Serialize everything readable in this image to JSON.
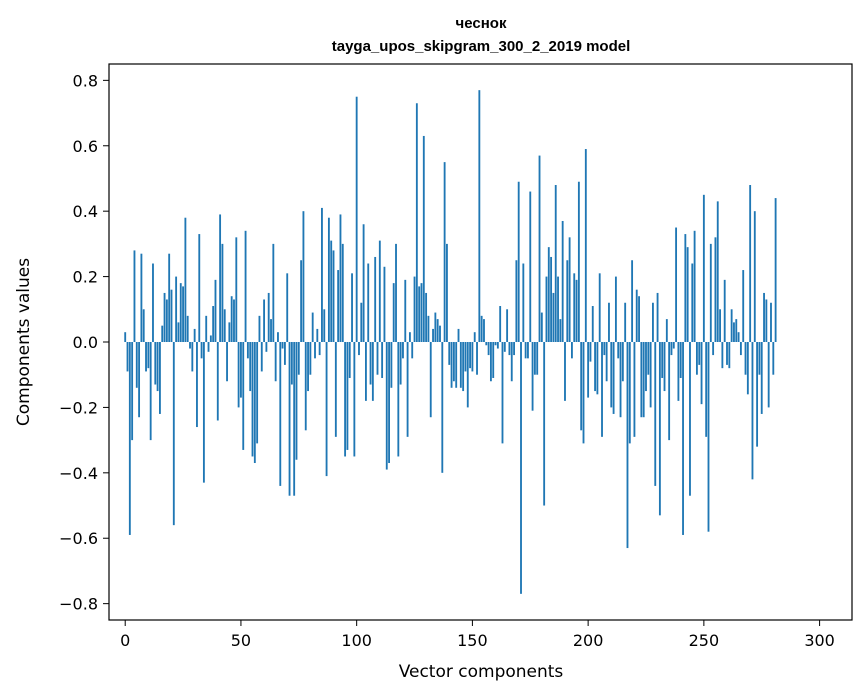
{
  "chart_data": {
    "type": "bar",
    "title": "чеснок",
    "subtitle": "tayga_upos_skipgram_300_2_2019 model",
    "xlabel": "Vector components",
    "ylabel": "Components values",
    "xlim": [
      -7,
      314
    ],
    "ylim": [
      -0.85,
      0.85
    ],
    "xticks": [
      0,
      50,
      100,
      150,
      200,
      250,
      300
    ],
    "xtick_labels": [
      "0",
      "50",
      "100",
      "150",
      "200",
      "250",
      "300"
    ],
    "yticks": [
      0.8,
      0.6,
      0.4,
      0.2,
      0.0,
      -0.2,
      -0.4,
      -0.6,
      -0.8
    ],
    "ytick_labels": [
      "0.8",
      "0.6",
      "0.4",
      "0.2",
      "0.0",
      "−0.2",
      "−0.4",
      "−0.6",
      "−0.8"
    ],
    "grid": false,
    "bar_color": "#1f77b4",
    "values": [
      0.03,
      -0.09,
      -0.59,
      -0.3,
      0.28,
      -0.14,
      -0.23,
      0.27,
      0.1,
      -0.09,
      -0.08,
      -0.3,
      0.24,
      -0.13,
      -0.15,
      -0.22,
      0.05,
      0.15,
      0.13,
      0.27,
      0.16,
      -0.56,
      0.2,
      0.06,
      0.18,
      0.17,
      0.38,
      0.08,
      -0.02,
      -0.09,
      0.04,
      -0.26,
      0.33,
      -0.05,
      -0.43,
      0.08,
      -0.03,
      0.02,
      0.11,
      0.19,
      -0.24,
      0.39,
      0.3,
      0.1,
      -0.12,
      0.06,
      0.14,
      0.13,
      0.32,
      -0.2,
      -0.17,
      -0.33,
      0.34,
      -0.05,
      -0.15,
      -0.35,
      -0.37,
      -0.31,
      0.08,
      -0.09,
      0.13,
      -0.03,
      0.15,
      0.07,
      0.3,
      -0.12,
      0.03,
      -0.44,
      -0.02,
      -0.07,
      0.21,
      -0.47,
      -0.13,
      -0.47,
      -0.36,
      -0.1,
      0.25,
      0.4,
      -0.27,
      -0.15,
      -0.1,
      0.09,
      -0.05,
      0.04,
      -0.04,
      0.41,
      0.1,
      -0.41,
      0.38,
      0.31,
      0.28,
      -0.29,
      0.22,
      0.39,
      0.3,
      -0.35,
      -0.33,
      -0.11,
      0.21,
      -0.35,
      0.75,
      -0.04,
      0.12,
      0.36,
      -0.18,
      0.24,
      -0.13,
      -0.18,
      0.26,
      -0.1,
      0.31,
      -0.11,
      0.23,
      -0.39,
      -0.37,
      -0.14,
      0.18,
      0.3,
      -0.35,
      -0.13,
      -0.05,
      0.19,
      -0.29,
      0.03,
      -0.05,
      0.2,
      0.73,
      0.17,
      0.18,
      0.63,
      0.15,
      0.08,
      -0.23,
      0.04,
      0.09,
      0.07,
      0.05,
      -0.4,
      0.55,
      0.3,
      -0.07,
      -0.14,
      -0.12,
      -0.14,
      0.04,
      -0.14,
      -0.15,
      -0.09,
      -0.2,
      -0.08,
      -0.09,
      0.03,
      -0.1,
      0.77,
      0.08,
      0.07,
      -0.01,
      -0.04,
      -0.12,
      -0.11,
      -0.01,
      -0.02,
      0.11,
      -0.31,
      -0.03,
      0.1,
      -0.04,
      -0.12,
      -0.04,
      0.25,
      0.49,
      -0.77,
      0.24,
      -0.05,
      -0.05,
      0.46,
      -0.21,
      -0.1,
      -0.1,
      0.57,
      0.09,
      -0.5,
      0.2,
      0.29,
      0.26,
      0.15,
      0.48,
      0.2,
      0.07,
      0.37,
      -0.18,
      0.25,
      0.32,
      -0.05,
      0.21,
      0.19,
      0.49,
      -0.27,
      -0.31,
      0.59,
      -0.17,
      -0.06,
      0.11,
      -0.15,
      -0.16,
      0.21,
      -0.29,
      -0.04,
      -0.12,
      0.12,
      -0.2,
      -0.22,
      0.2,
      -0.05,
      -0.23,
      -0.12,
      0.12,
      -0.63,
      -0.31,
      0.25,
      -0.29,
      0.16,
      0.14,
      -0.23,
      -0.23,
      -0.15,
      -0.1,
      -0.2,
      0.12,
      -0.44,
      0.15,
      -0.53,
      -0.11,
      -0.15,
      0.07,
      -0.3,
      -0.04,
      -0.02,
      0.35,
      -0.18,
      -0.11,
      -0.59,
      0.33,
      0.29,
      -0.47,
      0.24,
      0.34,
      -0.1,
      -0.07,
      -0.19,
      0.45,
      -0.29,
      -0.58,
      0.3,
      -0.04,
      0.32,
      0.43,
      0.1,
      -0.08,
      0.19,
      -0.07,
      -0.08,
      0.1,
      0.06,
      0.07,
      0.03,
      -0.04,
      0.22,
      -0.1,
      -0.16,
      0.48,
      -0.42,
      0.4,
      -0.32,
      -0.1,
      -0.22,
      0.15,
      0.13,
      -0.2,
      0.12,
      -0.1,
      0.44
    ]
  }
}
